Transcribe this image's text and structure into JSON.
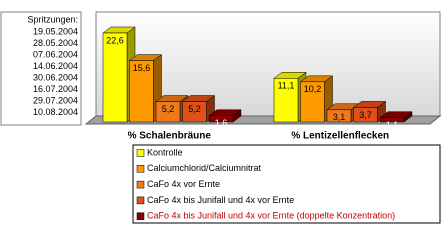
{
  "chart_data": {
    "type": "bar3d",
    "note_title": "Spritzungen:",
    "note_lines": [
      "19.05.2004",
      "28.05.2004",
      "07.06.2004",
      "14.06.2004",
      "30.06.2004",
      "16.07.2004",
      "29.07.2004",
      "10.08.2004"
    ],
    "categories": [
      "% Schalenbräune",
      "% Lentizellenflecken"
    ],
    "series": [
      {
        "name": "Kontrolle",
        "color": "#ffff00",
        "values": [
          22.6,
          11.1
        ],
        "value_labels": [
          "22,6",
          "11,1"
        ]
      },
      {
        "name": "Calciumchlorid/Calciumnitrat",
        "color": "#ff9900",
        "values": [
          15.6,
          10.2
        ],
        "value_labels": [
          "15,6",
          "10,2"
        ]
      },
      {
        "name": "CaFo 4x vor Ernte",
        "color": "#f07a1a",
        "values": [
          5.2,
          3.1
        ],
        "value_labels": [
          "5,2",
          "3,1"
        ]
      },
      {
        "name": "CaFo 4x bis Junifall und 4x vor Ernte",
        "color": "#e0501a",
        "values": [
          5.2,
          3.7
        ],
        "value_labels": [
          "5,2",
          "3,7"
        ]
      },
      {
        "name": "CaFo 4x bis Junifall und 4x vor Ernte (doppelte Konzentration)",
        "color": "#8b0000",
        "values": [
          1.6,
          1.1
        ],
        "value_labels": [
          "1,6",
          "1,1"
        ]
      }
    ]
  }
}
